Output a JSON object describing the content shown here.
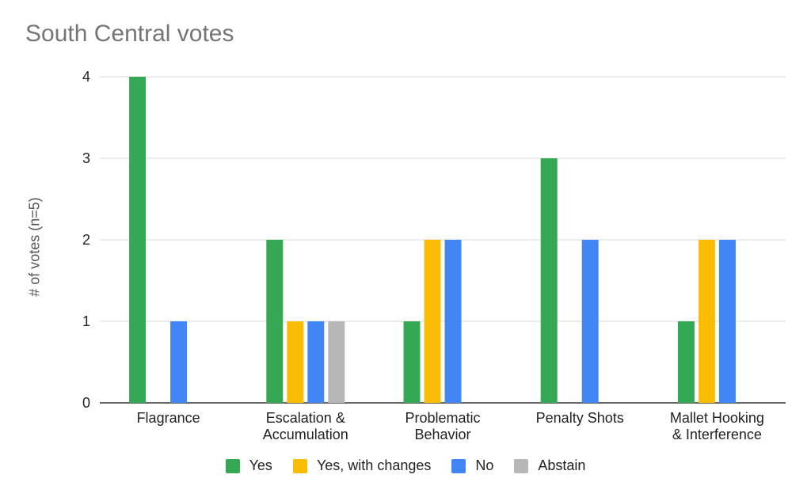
{
  "chart_data": {
    "type": "bar",
    "title": "South Central votes",
    "xlabel": "",
    "ylabel": "# of votes (n=5)",
    "ylim": [
      0,
      4
    ],
    "yticks": [
      "0",
      "1",
      "2",
      "3",
      "4"
    ],
    "grid": true,
    "legend_position": "bottom",
    "categories": [
      [
        "Flagrance"
      ],
      [
        "Escalation &",
        "Accumulation"
      ],
      [
        "Problematic",
        "Behavior"
      ],
      [
        "Penalty Shots"
      ],
      [
        "Mallet Hooking",
        "& Interference"
      ]
    ],
    "series": [
      {
        "name": "Yes",
        "color": "#34a853",
        "values": [
          4,
          2,
          1,
          3,
          1
        ]
      },
      {
        "name": "Yes, with changes",
        "color": "#fbbc04",
        "values": [
          0,
          1,
          2,
          0,
          2
        ]
      },
      {
        "name": "No",
        "color": "#4285f4",
        "values": [
          1,
          1,
          2,
          2,
          2
        ]
      },
      {
        "name": "Abstain",
        "color": "#b7b7b7",
        "values": [
          0,
          1,
          0,
          0,
          0
        ]
      }
    ]
  }
}
